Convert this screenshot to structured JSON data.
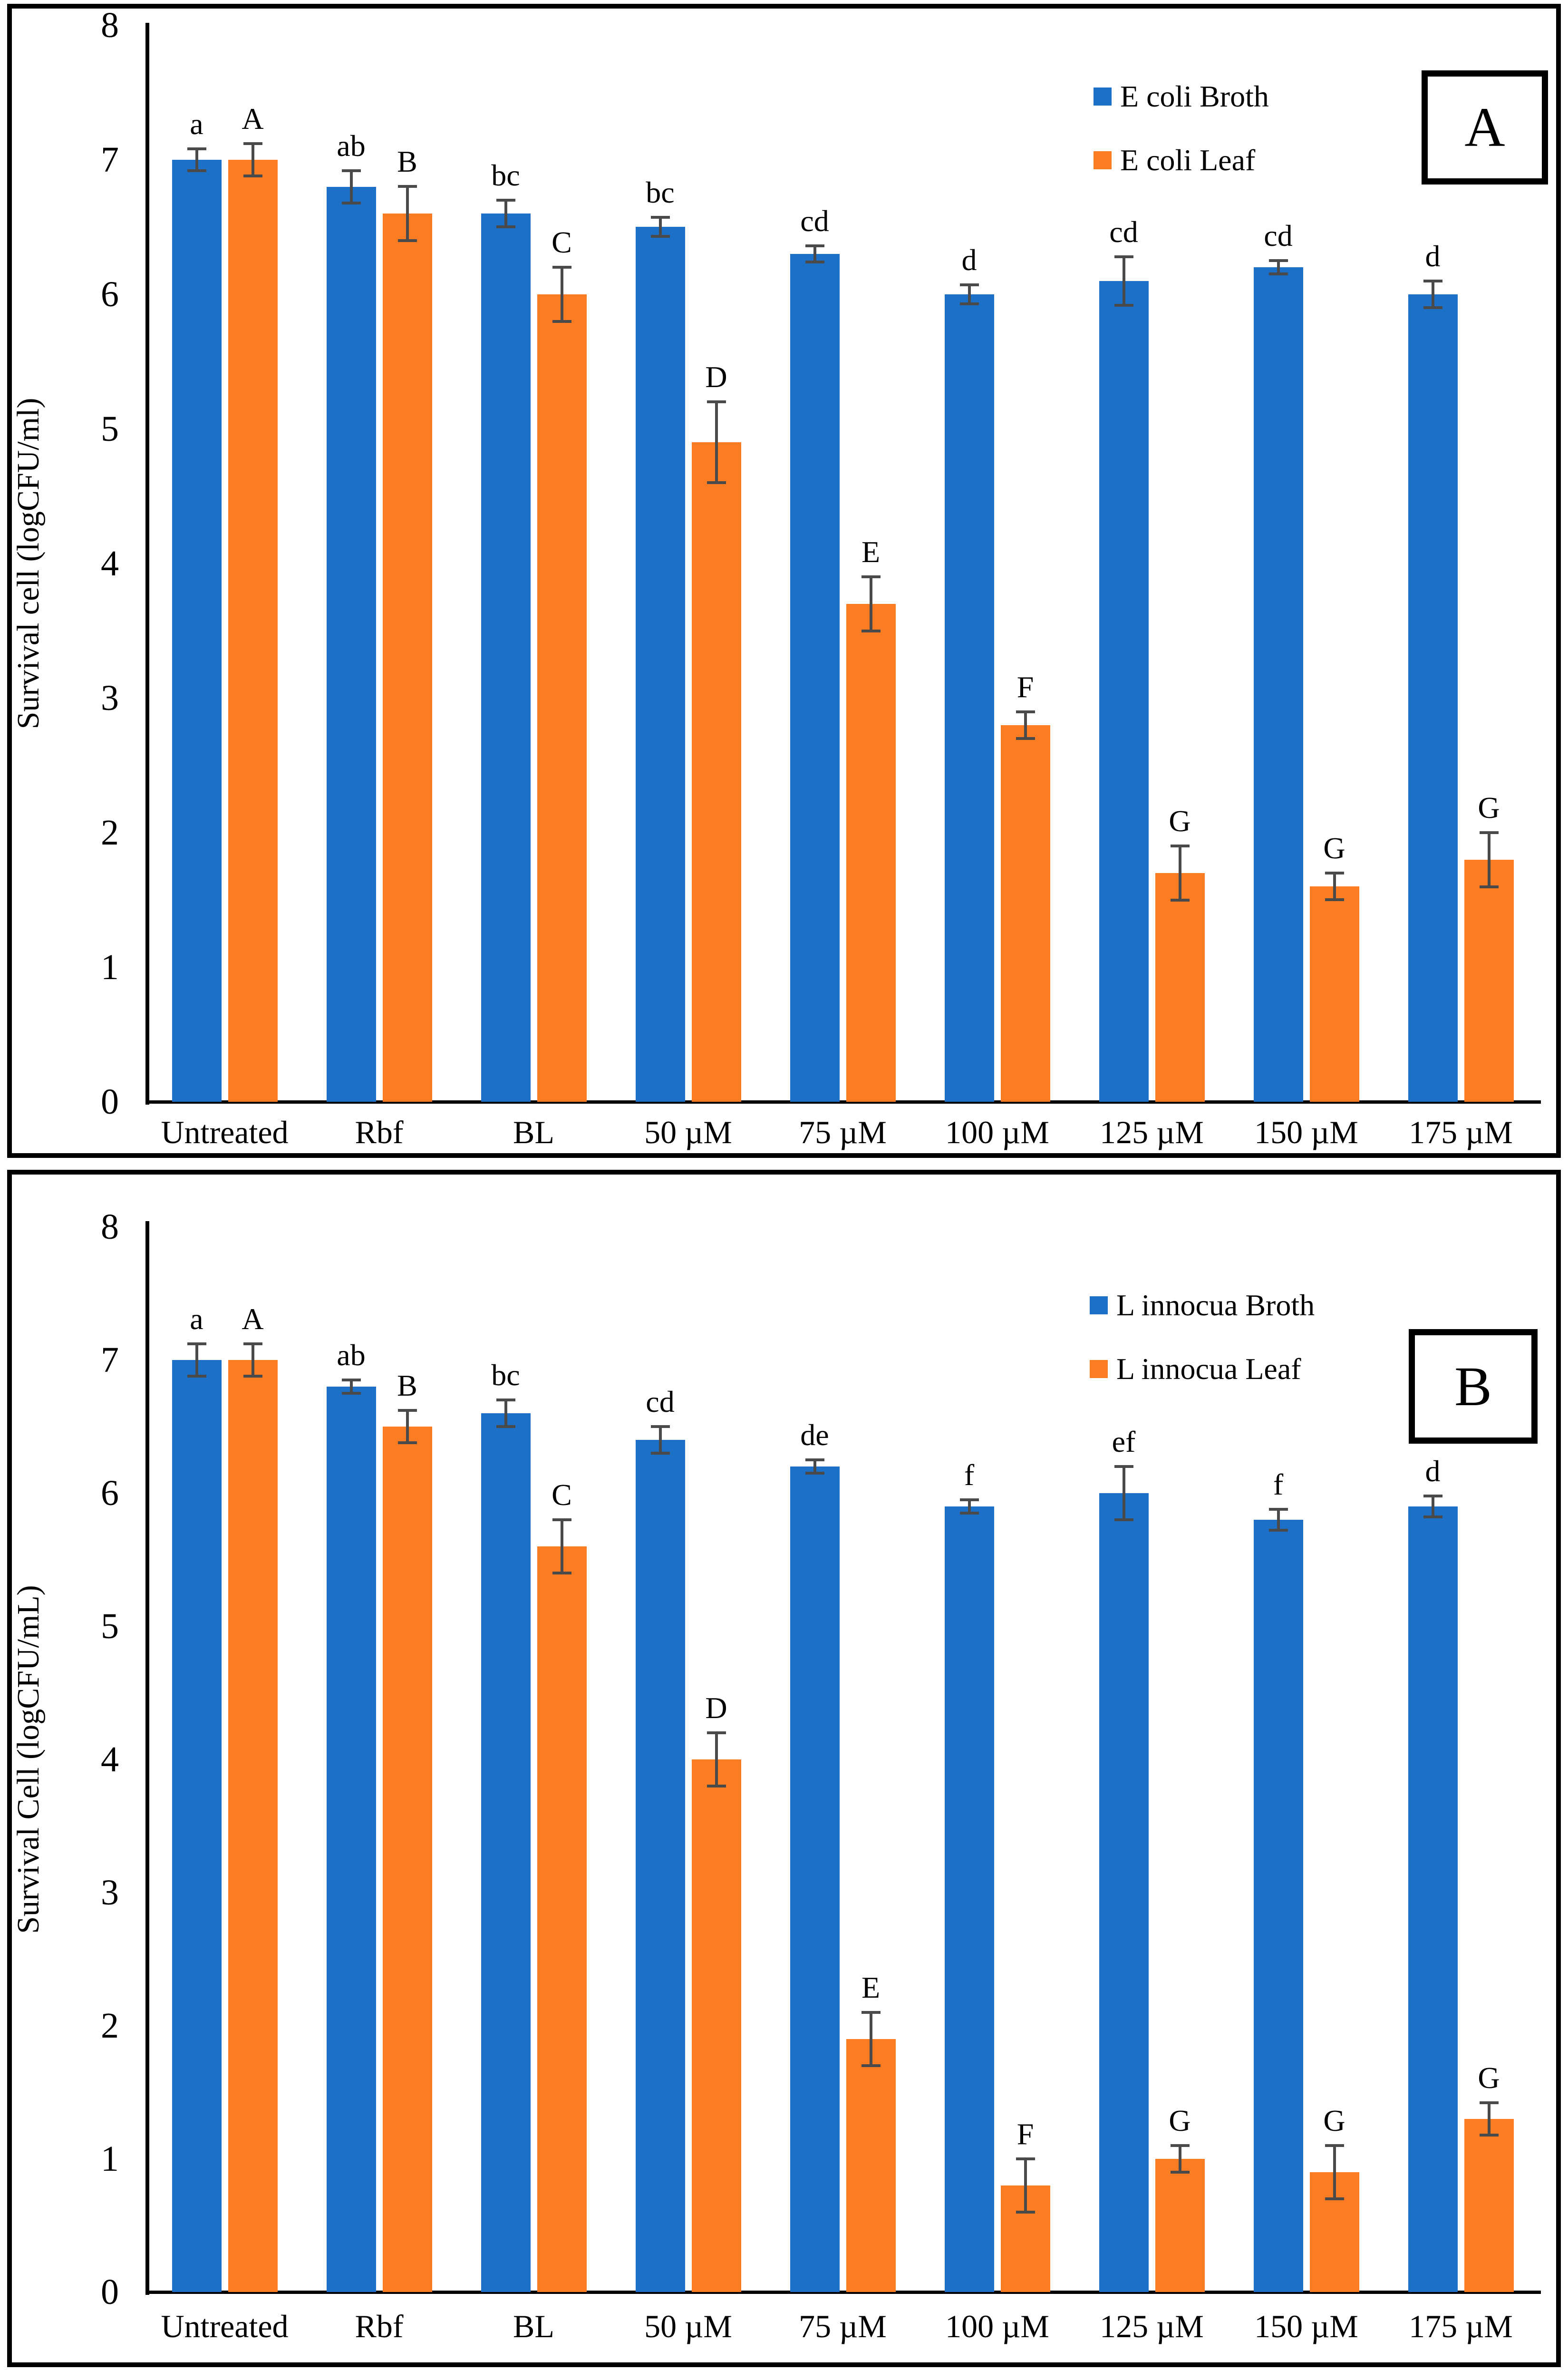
{
  "chart_data": [
    {
      "type": "bar",
      "panel_label": "A",
      "ylabel": "Survival cell (logCFU/ml)",
      "xlabel": "",
      "ylim": [
        0,
        8
      ],
      "y_ticks": [
        "8",
        "7",
        "6",
        "5",
        "4",
        "3",
        "2",
        "1",
        "0"
      ],
      "grid": false,
      "legend_position": "top-right",
      "categories": [
        "Untreated",
        "Rbf",
        "BL",
        "50 µM",
        "75 µM",
        "100 µM",
        "125 µM",
        "150 µM",
        "175 µM"
      ],
      "series": [
        {
          "name": "E coli Broth",
          "color": "#1C70C8",
          "values": [
            7.0,
            6.8,
            6.6,
            6.5,
            6.3,
            6.0,
            6.1,
            6.2,
            6.0
          ],
          "errors": [
            0.08,
            0.12,
            0.1,
            0.07,
            0.06,
            0.07,
            0.18,
            0.05,
            0.1
          ],
          "letters": [
            "a",
            "ab",
            "bc",
            "bc",
            "cd",
            "d",
            "cd",
            "cd",
            "d"
          ]
        },
        {
          "name": "E coli Leaf",
          "color": "#FB7C23",
          "values": [
            7.0,
            6.6,
            6.0,
            4.9,
            3.7,
            2.8,
            1.7,
            1.6,
            1.8
          ],
          "errors": [
            0.12,
            0.2,
            0.2,
            0.3,
            0.2,
            0.1,
            0.2,
            0.1,
            0.2
          ],
          "letters": [
            "A",
            "B",
            "C",
            "D",
            "E",
            "F",
            "G",
            "G",
            "G"
          ]
        }
      ]
    },
    {
      "type": "bar",
      "panel_label": "B",
      "ylabel": "Survival Cell (logCFU/mL)",
      "xlabel": "",
      "ylim": [
        0,
        8
      ],
      "y_ticks": [
        "8",
        "7",
        "6",
        "5",
        "4",
        "3",
        "2",
        "1",
        "0"
      ],
      "grid": false,
      "legend_position": "top-right",
      "categories": [
        "Untreated",
        "Rbf",
        "BL",
        "50 µM",
        "75 µM",
        "100 µM",
        "125 µM",
        "150 µM",
        "175 µM"
      ],
      "series": [
        {
          "name": "L innocua Broth",
          "color": "#1C70C8",
          "values": [
            7.0,
            6.8,
            6.6,
            6.4,
            6.2,
            5.9,
            6.0,
            5.8,
            5.9
          ],
          "errors": [
            0.12,
            0.05,
            0.1,
            0.1,
            0.05,
            0.05,
            0.2,
            0.08,
            0.08
          ],
          "letters": [
            "a",
            "ab",
            "bc",
            "cd",
            "de",
            "f",
            "ef",
            "f",
            "d"
          ]
        },
        {
          "name": "L innocua Leaf",
          "color": "#FB7C23",
          "values": [
            7.0,
            6.5,
            5.6,
            4.0,
            1.9,
            0.8,
            1.0,
            0.9,
            1.3
          ],
          "errors": [
            0.12,
            0.12,
            0.2,
            0.2,
            0.2,
            0.2,
            0.1,
            0.2,
            0.12
          ],
          "letters": [
            "A",
            "B",
            "C",
            "D",
            "E",
            "F",
            "G",
            "G",
            "G"
          ]
        }
      ]
    }
  ]
}
